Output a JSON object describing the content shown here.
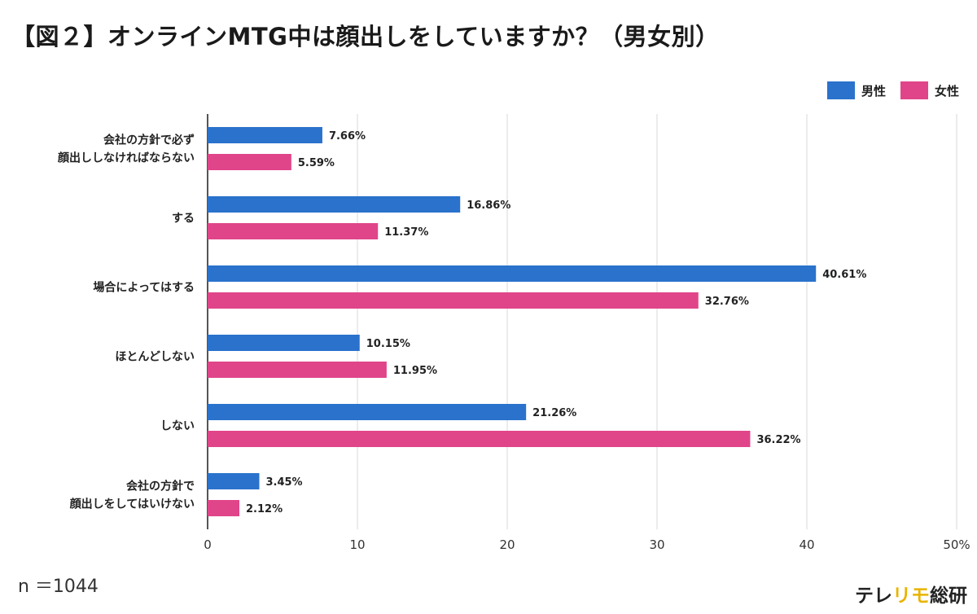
{
  "title": "【図２】オンラインMTG中は顔出しをしていますか？（男女別）",
  "sample_size": "n ＝1044",
  "logo": {
    "part1": "テレ",
    "accent": "リモ",
    "part2": "総研"
  },
  "colors": {
    "male": "#2a72cc",
    "female": "#e0458a",
    "grid": "#e6e6e6",
    "axis": "#555555"
  },
  "chart_data": {
    "type": "bar",
    "orientation": "horizontal",
    "categories": [
      [
        "会社の方針で必ず",
        "顔出ししなければならない"
      ],
      [
        "する"
      ],
      [
        "場合によってはする"
      ],
      [
        "ほとんどしない"
      ],
      [
        "しない"
      ],
      [
        "会社の方針で",
        "顔出しをしてはいけない"
      ]
    ],
    "series": [
      {
        "name": "男性",
        "values": [
          7.66,
          16.86,
          40.61,
          10.15,
          21.26,
          3.45
        ],
        "labels": [
          "7.66%",
          "16.86%",
          "40.61%",
          "10.15%",
          "21.26%",
          "3.45%"
        ]
      },
      {
        "name": "女性",
        "values": [
          5.59,
          11.37,
          32.76,
          11.95,
          36.22,
          2.12
        ],
        "labels": [
          "5.59%",
          "11.37%",
          "32.76%",
          "11.95%",
          "36.22%",
          "2.12%"
        ]
      }
    ],
    "xlim": [
      0,
      50
    ],
    "xticks": [
      "0",
      "10",
      "20",
      "30",
      "40",
      "50%"
    ],
    "grid": true,
    "legend_position": "top-right"
  }
}
